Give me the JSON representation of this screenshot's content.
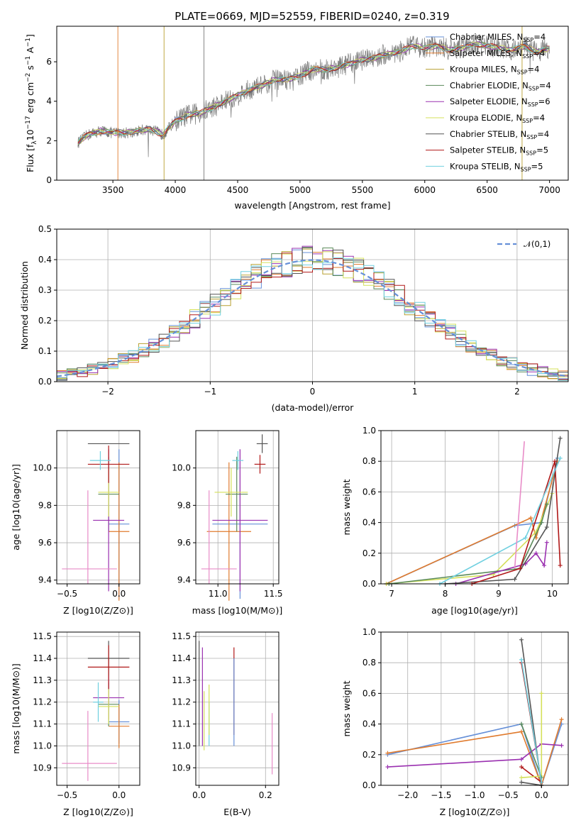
{
  "figure_title": "PLATE=0669, MJD=52559, FIBERID=0240, z=0.319",
  "models": [
    {
      "name": "Chabrier MILES, N_SSP=4",
      "label": "Chabrier MILES, N",
      "sub": "SSP",
      "eq": "=4",
      "color": "#6690d8"
    },
    {
      "name": "Salpeter MILES, N_SSP=4",
      "label": "Salpeter MILES, N",
      "sub": "SSP",
      "eq": "=4",
      "color": "#e07b2e"
    },
    {
      "name": "Kroupa MILES, N_SSP=4",
      "label": "Kroupa MILES, N",
      "sub": "SSP",
      "eq": "=4",
      "color": "#b8a030"
    },
    {
      "name": "Chabrier ELODIE, N_SSP=4",
      "label": "Chabrier ELODIE, N",
      "sub": "SSP",
      "eq": "=4",
      "color": "#5a8a5a"
    },
    {
      "name": "Salpeter ELODIE, N_SSP=6",
      "label": "Salpeter ELODIE, N",
      "sub": "SSP",
      "eq": "=6",
      "color": "#9a30b0"
    },
    {
      "name": "Kroupa ELODIE, N_SSP=4",
      "label": "Kroupa ELODIE, N",
      "sub": "SSP",
      "eq": "=4",
      "color": "#d4e05a"
    },
    {
      "name": "Chabrier STELIB, N_SSP=4",
      "label": "Chabrier STELIB, N",
      "sub": "SSP",
      "eq": "=4",
      "color": "#555555"
    },
    {
      "name": "Salpeter STELIB, N_SSP=5",
      "label": "Salpeter STELIB, N",
      "sub": "SSP",
      "eq": "=5",
      "color": "#b01818"
    },
    {
      "name": "Kroupa STELIB, N_SSP=5",
      "label": "Kroupa STELIB, N",
      "sub": "SSP",
      "eq": "=5",
      "color": "#70d0e0"
    }
  ],
  "chart_data": [
    {
      "type": "line",
      "id": "spectrum",
      "xlabel": "wavelength [Angstrom, rest frame]",
      "ylabel_parts": [
        "Flux [f",
        "λ",
        "10",
        "−17",
        " erg cm",
        "−2",
        " s",
        "−1",
        " A",
        "−1",
        "]"
      ],
      "xlim": [
        3050,
        7150
      ],
      "ylim": [
        0,
        7.8
      ],
      "xticks": [
        3500,
        4000,
        4500,
        5000,
        5500,
        6000,
        6500,
        7000
      ],
      "yticks": [
        0,
        2,
        4,
        6
      ],
      "series": [
        {
          "x": [
            3220,
            3300,
            3400,
            3500,
            3600,
            3700,
            3800,
            3900,
            4000,
            4100,
            4200,
            4300,
            4400,
            4500,
            4600,
            4700,
            4800,
            4900,
            5000,
            5100,
            5200,
            5300,
            5400,
            5500,
            5600,
            5700,
            5800,
            5900,
            6000,
            6100,
            6200,
            6300,
            6400,
            6500,
            6600,
            6700,
            6800,
            6900,
            7000
          ],
          "y": [
            1.9,
            2.3,
            2.5,
            2.4,
            2.4,
            2.5,
            2.6,
            2.3,
            3.0,
            3.3,
            3.4,
            3.7,
            4.0,
            4.3,
            4.6,
            4.8,
            5.1,
            5.1,
            5.3,
            5.6,
            5.6,
            5.7,
            5.9,
            6.1,
            6.2,
            6.4,
            6.5,
            6.8,
            6.7,
            6.8,
            6.6,
            6.7,
            6.9,
            6.8,
            6.7,
            6.6,
            6.8,
            6.5,
            6.7
          ]
        }
      ]
    },
    {
      "type": "bar",
      "id": "residuals",
      "xlabel": "(data-model)/error",
      "ylabel": "Normed distribution",
      "xlim": [
        -2.5,
        2.5
      ],
      "ylim": [
        0,
        0.5
      ],
      "xticks": [
        -2,
        -1,
        0,
        1,
        2
      ],
      "yticks": [
        0,
        0.1,
        0.2,
        0.3,
        0.4,
        0.5
      ],
      "legend": "𝒩(0,1)",
      "legend_position": "top-right",
      "bin_width": 0.1
    },
    {
      "type": "scatter",
      "id": "age-vs-Z",
      "xlabel": "Z [log10(Z/Z⊙)]",
      "ylabel": "age  [log10(age/yr)]",
      "xlim": [
        -0.6,
        0.2
      ],
      "ylim": [
        9.38,
        10.2
      ],
      "xticks": [
        -0.5,
        0.0
      ],
      "yticks": [
        9.4,
        9.6,
        9.8,
        10.0
      ],
      "points": [
        {
          "model": 0,
          "x": 0.0,
          "y": 9.7,
          "ex": 0.1,
          "ey": 0.4
        },
        {
          "model": 1,
          "x": 0.0,
          "y": 9.66,
          "ex": 0.1,
          "ey": 0.37
        },
        {
          "model": 3,
          "x": -0.1,
          "y": 9.86,
          "ex": 0.1,
          "ey": 0.2
        },
        {
          "model": 4,
          "x": -0.1,
          "y": 9.72,
          "ex": 0.15,
          "ey": 0.38
        },
        {
          "model": 5,
          "x": -0.1,
          "y": 9.87,
          "ex": 0.1,
          "ey": 0.13
        },
        {
          "model": 6,
          "x": -0.1,
          "y": 10.13,
          "ex": 0.2,
          "ey": 0.0
        },
        {
          "model": 7,
          "x": -0.1,
          "y": 10.02,
          "ex": 0.2,
          "ey": 0.1
        },
        {
          "model": 8,
          "x": -0.18,
          "y": 10.04,
          "ex": 0.1,
          "ey": 0.05
        },
        {
          "model": 0,
          "x": -0.3,
          "y": 10.05,
          "ex": 0.0,
          "ey": 0.0
        },
        {
          "model": 2,
          "x": -0.3,
          "y": 10.05,
          "ex": 0.0,
          "ey": 0.0
        },
        {
          "model": 9,
          "x": -0.3,
          "y": 9.46,
          "ex": 0.3,
          "ey": 0.0
        }
      ]
    },
    {
      "type": "scatter",
      "id": "age-vs-mass",
      "xlabel": "mass [log10(M/M⊙)]",
      "ylabel": "",
      "xlim": [
        10.8,
        11.55
      ],
      "ylim": [
        9.38,
        10.2
      ],
      "xticks": [
        11.0,
        11.5
      ],
      "yticks": [
        9.4,
        9.6,
        9.8,
        10.0
      ],
      "points": [
        {
          "model": 0,
          "x": 11.2,
          "y": 9.7,
          "ex": 0.25,
          "ey": 0.4
        },
        {
          "model": 1,
          "x": 11.1,
          "y": 9.66,
          "ex": 0.2,
          "ey": 0.37
        },
        {
          "model": 3,
          "x": 11.17,
          "y": 9.86,
          "ex": 0.1,
          "ey": 0.2
        },
        {
          "model": 4,
          "x": 11.2,
          "y": 9.72,
          "ex": 0.25,
          "ey": 0.38
        },
        {
          "model": 5,
          "x": 11.12,
          "y": 9.87,
          "ex": 0.15,
          "ey": 0.13
        },
        {
          "model": 6,
          "x": 11.4,
          "y": 10.13,
          "ex": 0.05,
          "ey": 0.05
        },
        {
          "model": 7,
          "x": 11.38,
          "y": 10.02,
          "ex": 0.05,
          "ey": 0.05
        },
        {
          "model": 8,
          "x": 11.18,
          "y": 10.04,
          "ex": 0.05,
          "ey": 0.05
        },
        {
          "model": 9,
          "x": 10.92,
          "y": 9.46,
          "ex": 0.15,
          "ey": 0.0
        }
      ]
    },
    {
      "type": "line",
      "id": "massweight-vs-age",
      "xlabel": "age  [log10(age/yr)]",
      "ylabel": "mass weight",
      "xlim": [
        6.8,
        10.3
      ],
      "ylim": [
        0,
        1
      ],
      "xticks": [
        7,
        8,
        9,
        10
      ],
      "yticks": [
        0,
        0.2,
        0.4,
        0.6,
        0.8,
        1.0
      ]
    },
    {
      "type": "scatter",
      "id": "mass-vs-Z",
      "xlabel": "Z [log10(Z/Z⊙)]",
      "ylabel": "mass [log10(M/M⊙)]",
      "xlim": [
        -0.6,
        0.2
      ],
      "ylim": [
        10.82,
        11.52
      ],
      "xticks": [
        -0.5,
        0.0
      ],
      "yticks": [
        10.9,
        11.0,
        11.1,
        11.2,
        11.3,
        11.4,
        11.5
      ]
    },
    {
      "type": "scatter",
      "id": "mass-vs-ebv",
      "xlabel": "E(B-V)",
      "ylabel": "",
      "xlim": [
        -0.01,
        0.24
      ],
      "ylim": [
        10.82,
        11.52
      ],
      "xticks": [
        0.0,
        0.2
      ],
      "yticks": [
        10.9,
        11.0,
        11.1,
        11.2,
        11.3,
        11.4,
        11.5
      ]
    },
    {
      "type": "line",
      "id": "massweight-vs-Z",
      "xlabel": "Z [log10(Z/Z⊙)]",
      "ylabel": "mass weight",
      "xlim": [
        -2.4,
        0.4
      ],
      "ylim": [
        0,
        1
      ],
      "xticks": [
        -2.0,
        -1.5,
        -1.0,
        -0.5,
        0.0
      ],
      "yticks": [
        0,
        0.2,
        0.4,
        0.6,
        0.8,
        1.0
      ]
    }
  ]
}
